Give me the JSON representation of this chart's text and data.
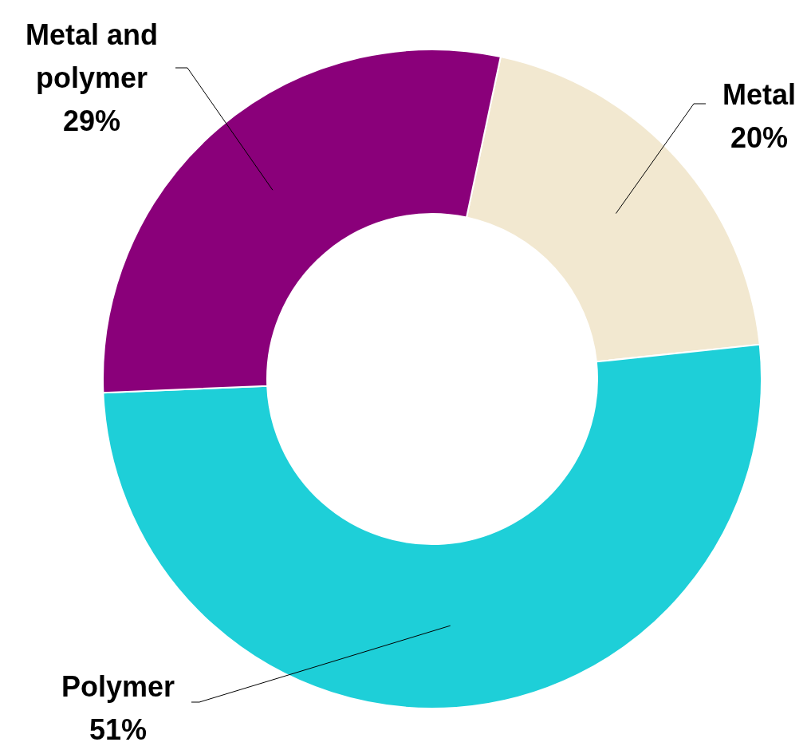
{
  "chart_data": {
    "type": "donut",
    "categories": [
      "Metal",
      "Polymer",
      "Metal and polymer"
    ],
    "values": [
      20,
      51,
      29
    ],
    "colors": [
      "#f2e8d0",
      "#1ecfd8",
      "#8a007a"
    ],
    "value_labels": [
      "20%",
      "51%",
      "29%"
    ],
    "legend": false
  }
}
